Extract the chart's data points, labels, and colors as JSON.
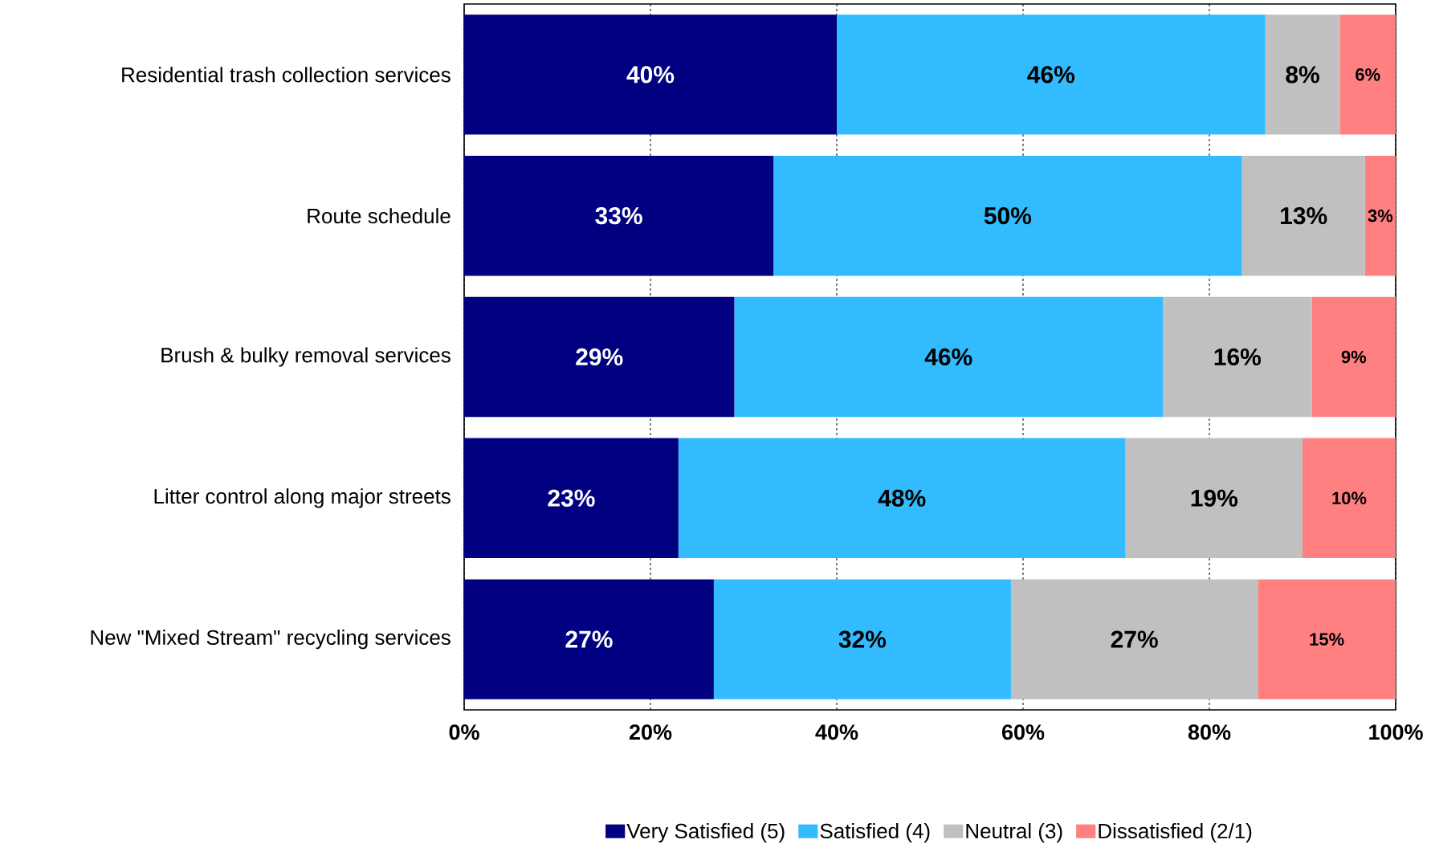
{
  "chart_data": {
    "type": "bar",
    "orientation": "horizontal",
    "stacked": true,
    "categories": [
      "Residential trash collection services",
      "Route schedule",
      "Brush & bulky removal services",
      "Litter control along major streets",
      "New \"Mixed Stream\" recycling services"
    ],
    "series": [
      {
        "name": "Very Satisfied (5)",
        "color": "#000080",
        "values": [
          40,
          33.2,
          29,
          23,
          26.8
        ],
        "value_labels": [
          "40%",
          "33%",
          "29%",
          "23%",
          "27%"
        ]
      },
      {
        "name": "Satisfied (4)",
        "color": "#33bbff",
        "values": [
          46,
          50.3,
          46,
          48,
          31.9
        ],
        "value_labels": [
          "46%",
          "50%",
          "46%",
          "48%",
          "32%"
        ]
      },
      {
        "name": "Neutral (3)",
        "color": "#c0c0c0",
        "values": [
          8,
          13.2,
          16,
          19,
          26.5
        ],
        "value_labels": [
          "8%",
          "13%",
          "16%",
          "19%",
          "27%"
        ]
      },
      {
        "name": "Dissatisfied (2/1)",
        "color": "#ff8080",
        "values": [
          6,
          3.3,
          9,
          10,
          14.8
        ],
        "value_labels": [
          "6%",
          "3%",
          "9%",
          "10%",
          "15%"
        ]
      }
    ],
    "xlim": [
      0,
      100
    ],
    "xticks": [
      {
        "value": 0,
        "label": "0%"
      },
      {
        "value": 20,
        "label": "20%"
      },
      {
        "value": 40,
        "label": "40%"
      },
      {
        "value": 60,
        "label": "60%"
      },
      {
        "value": 80,
        "label": "80%"
      },
      {
        "value": 100,
        "label": "100%"
      }
    ],
    "grid": "x",
    "legend": "bottom"
  }
}
